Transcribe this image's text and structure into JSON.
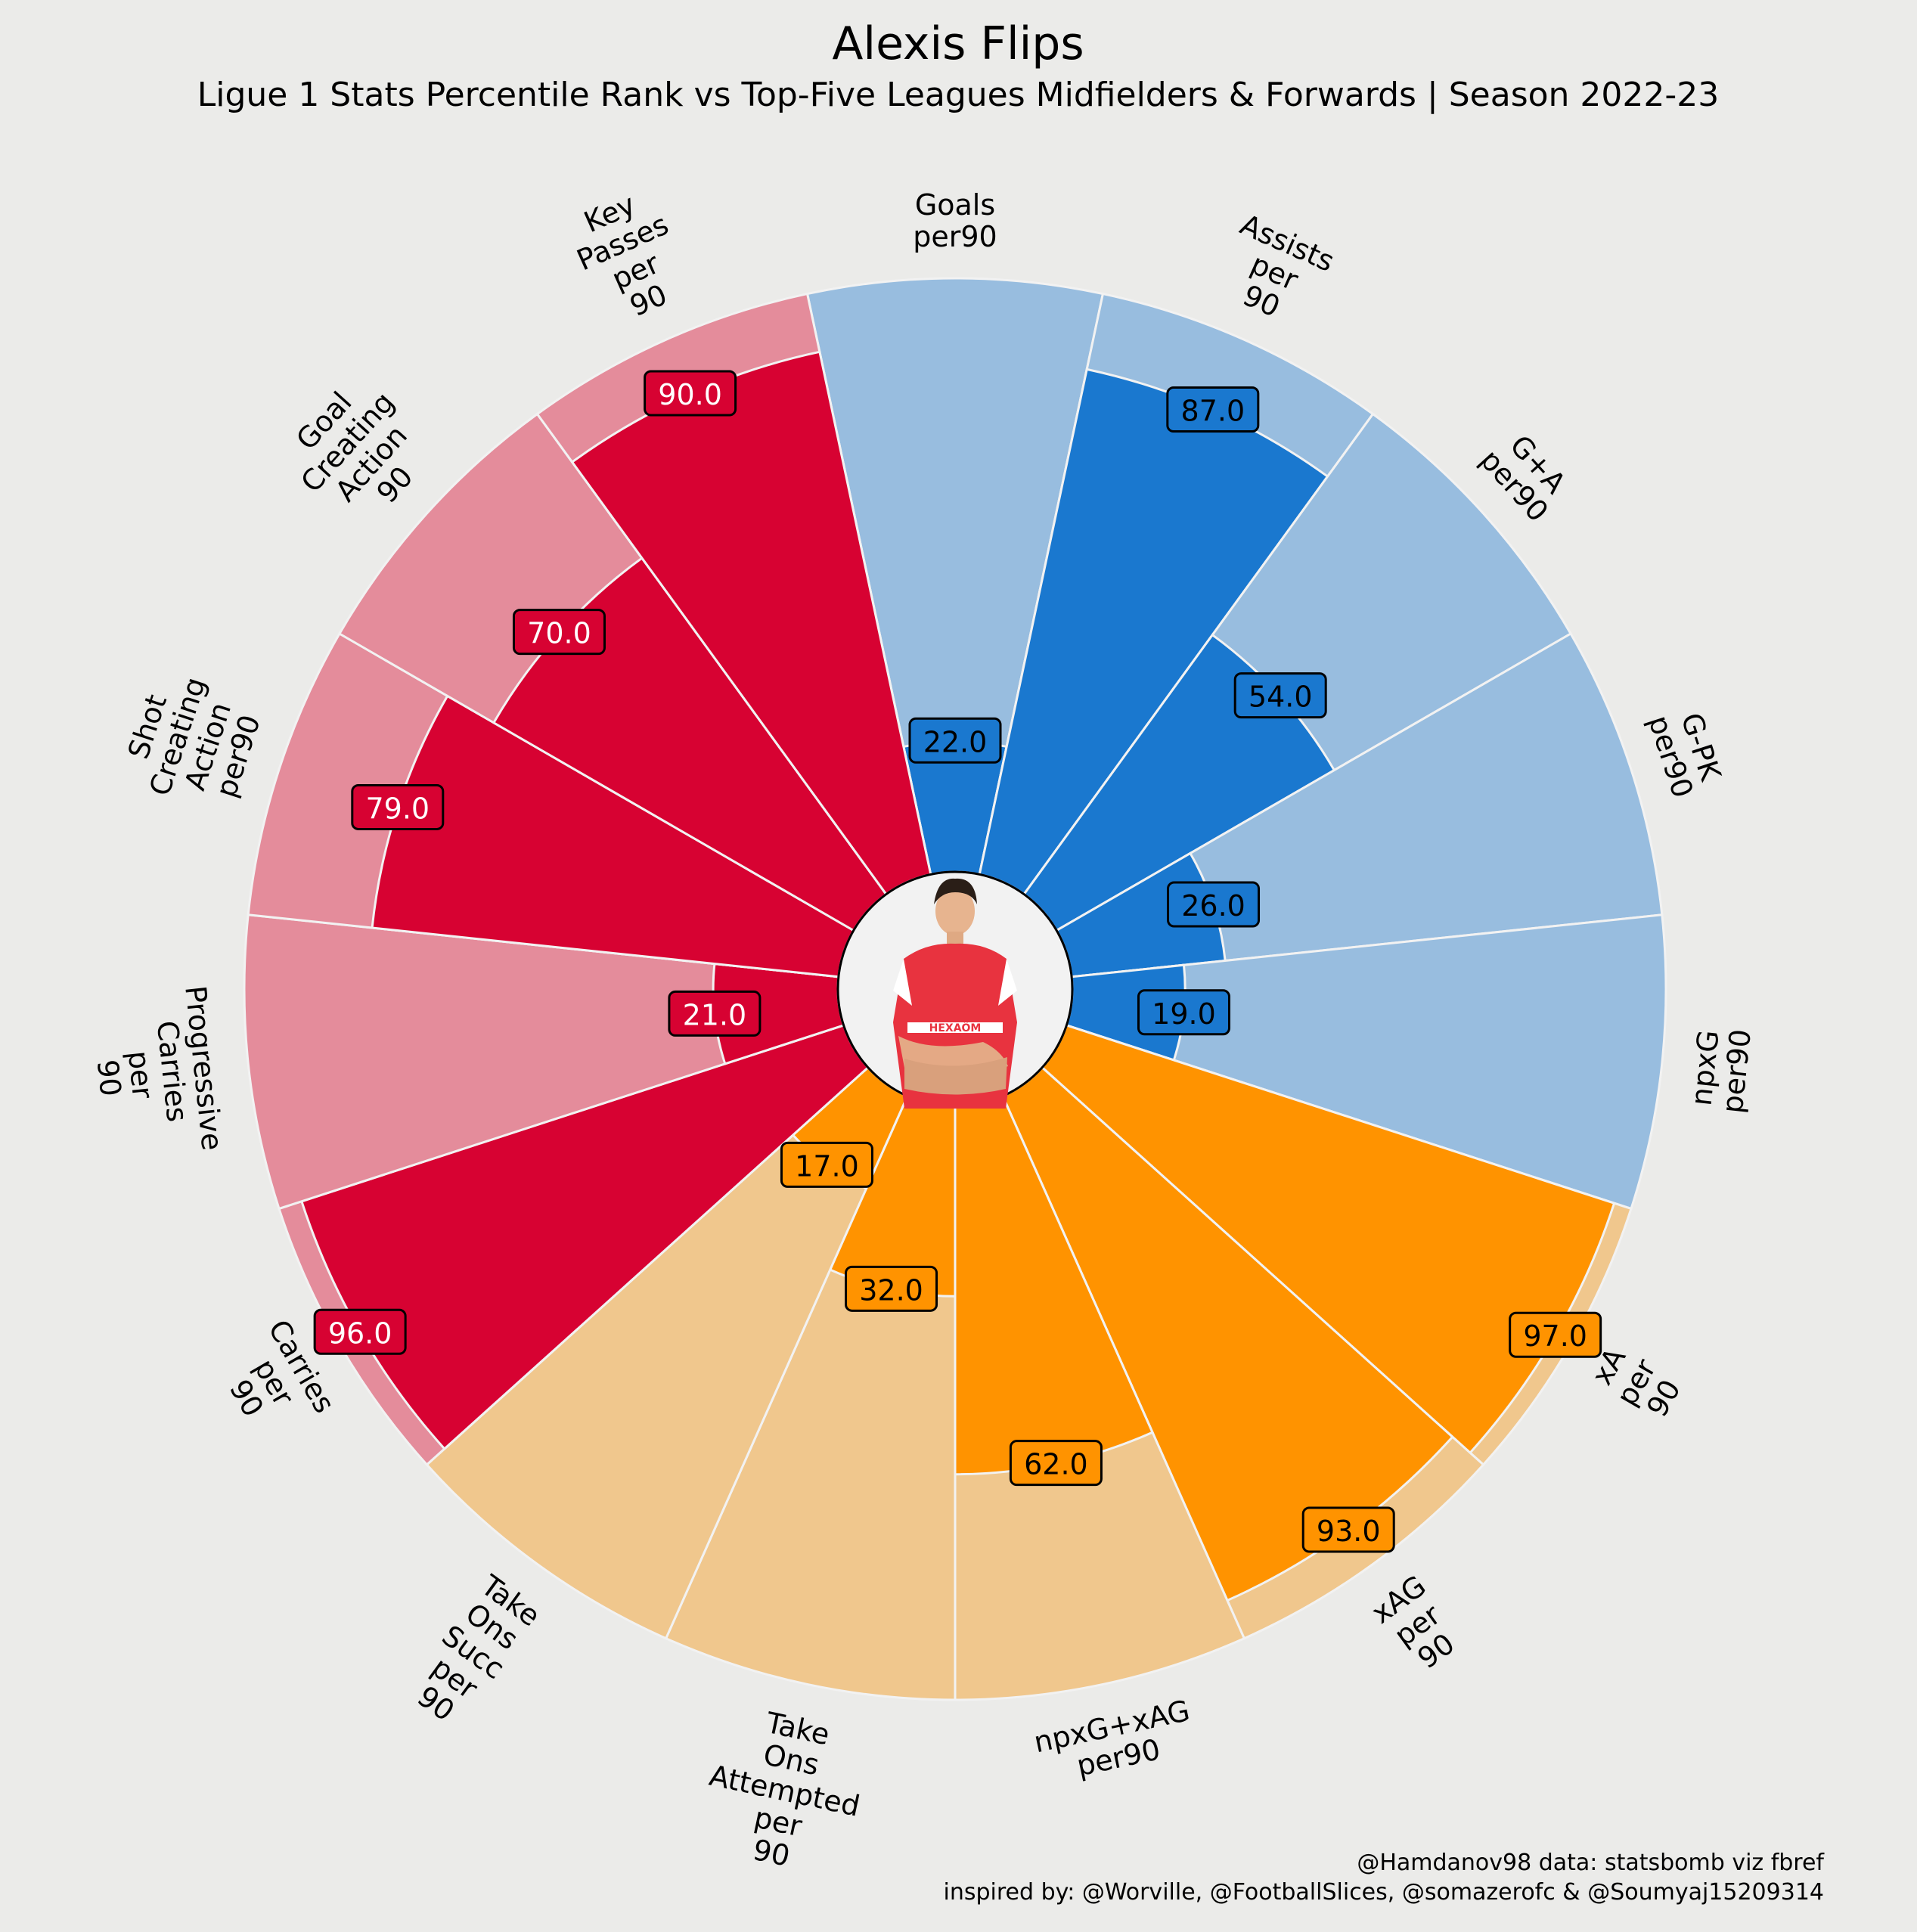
{
  "chart_data": {
    "type": "polar-bar",
    "title": "Alexis Flips",
    "subtitle": "Ligue 1 Stats Percentile Rank vs Top-Five Leagues Midfielders & Forwards | Season 2022-23",
    "rlim": [
      0,
      100
    ],
    "grid": false,
    "series": [
      {
        "category": "Goals per90",
        "value": 22,
        "group": "attacking"
      },
      {
        "category": "Assists per 90",
        "value": 87,
        "group": "attacking"
      },
      {
        "category": "G+A per90",
        "value": 54,
        "group": "attacking"
      },
      {
        "category": "G-PK per90",
        "value": 26,
        "group": "attacking"
      },
      {
        "category": "npxG per90",
        "value": 19,
        "group": "attacking"
      },
      {
        "category": "xA per 90",
        "value": 97,
        "group": "expected"
      },
      {
        "category": "xAG per 90",
        "value": 93,
        "group": "expected"
      },
      {
        "category": "npxG+xAG per90",
        "value": 62,
        "group": "expected"
      },
      {
        "category": "Take Ons Attempted per 90",
        "value": 32,
        "group": "expected"
      },
      {
        "category": "Take Ons Succ per 90",
        "value": 17,
        "group": "expected"
      },
      {
        "category": "Carries per 90",
        "value": 96,
        "group": "possession"
      },
      {
        "category": "Progressive Carries per 90",
        "value": 21,
        "group": "possession"
      },
      {
        "category": "Shot Creating Action per90",
        "value": 79,
        "group": "possession"
      },
      {
        "category": "Goal Creating Action 90",
        "value": 70,
        "group": "possession"
      },
      {
        "category": "Key Passes per 90",
        "value": 90,
        "group": "possession"
      }
    ],
    "labels": [
      [
        "Goals",
        "per90"
      ],
      [
        "Assists",
        "per",
        "90"
      ],
      [
        "G+A",
        "per90"
      ],
      [
        "G-PK",
        "per90"
      ],
      [
        "npxG",
        "per90"
      ],
      [
        "xA",
        "per",
        "90"
      ],
      [
        "xAG",
        "per",
        "90"
      ],
      [
        "npxG+xAG",
        "per90"
      ],
      [
        "Take",
        "Ons",
        "Attempted",
        "per",
        "90"
      ],
      [
        "Take",
        "Ons",
        "Succ",
        "per",
        "90"
      ],
      [
        "Carries",
        "per",
        "90"
      ],
      [
        "Progressive",
        "Carries",
        "per",
        "90"
      ],
      [
        "Shot",
        "Creating",
        "Action",
        "per90"
      ],
      [
        "Goal",
        "Creating",
        "Action",
        "90"
      ],
      [
        "Key",
        "Passes",
        "per",
        "90"
      ]
    ],
    "value_labels": [
      "22.0",
      "87.0",
      "54.0",
      "26.0",
      "19.0",
      "97.0",
      "93.0",
      "62.0",
      "32.0",
      "17.0",
      "96.0",
      "21.0",
      "79.0",
      "70.0",
      "90.0"
    ],
    "colors": {
      "attacking": "#1A78CF",
      "attacking_bg": "#98BDDF",
      "expected": "#FF9300",
      "expected_bg": "#F0C78D",
      "possession": "#D70232",
      "possession_bg": "#E48C9B",
      "background": "#EBEBE9"
    }
  },
  "center_image": "player-photo-icon",
  "credits": {
    "line1": "@Hamdanov98 data: statsbomb viz fbref",
    "line2": "inspired by: @Worville, @FootballSlices, @somazerofc & @Soumyaj15209314"
  }
}
